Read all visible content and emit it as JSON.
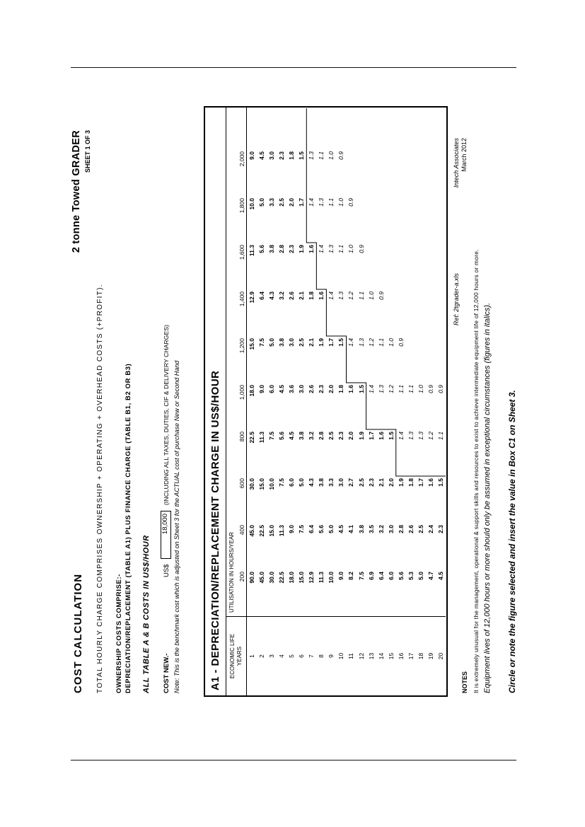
{
  "document": {
    "title": "COST CALCULATION",
    "machine": "2 tonne Towed GRADER",
    "sheet_label": "SHEET 1 OF 3",
    "intro": "TOTAL HOURLY CHARGE COMPRISES OWNERSHIP + OPERATING + OVERHEAD COSTS (+PROFIT).",
    "ownership_heading": "OWNERSHIP COSTS COMPRISE:-",
    "ownership_detail": "DEPRECIATION/REPLACEMENT (TABLE A1) PLUS FINANCE CHARGE (TABLE B1, B2 OR B3)",
    "costs_note": "ALL TABLE A & B COSTS IN US$/HOUR",
    "cost_new": {
      "label": "COST NEW.-",
      "currency": "US$",
      "value": "18,000",
      "suffix": "(INCLUDING ALL TAXES, DUTIES, CIF & DELIVERY CHARGES)"
    },
    "benchmark_note": "Note: This is the benchmark cost which is adjusted on Sheet 3 for the ACTUAL cost of purchase New or Second Hand",
    "ref": "Ref: 2tgrader-a.xls",
    "company": "Intech Associates",
    "date": "March 2012",
    "notes_heading": "NOTES",
    "note1": "It is extremely unusual for the management, operational & support skills and resources to exist to achieve intermediate equipment life of 12,000 hours or more.",
    "note2": "Equipment lives of 12,000 hours or more should only be assumed in exceptional circumstances (figures in italics).",
    "note3": "Circle or note the figure selected and insert the value in Box C1 on Sheet 3."
  },
  "table": {
    "title": "A1 - DEPRECIATION/REPLACEMENT CHARGE IN US$/HOUR",
    "row_header_line1": "ECONOMIC LIFE",
    "row_header_line2": "YEARS",
    "col_group_header": "UTILISATION IN HOURS/YEAR",
    "col_headers": [
      "200",
      "400",
      "600",
      "800",
      "1,000",
      "1,200",
      "1,400",
      "1,600",
      "1,800",
      "2,000"
    ],
    "italic_threshold_hours": 12000,
    "rows": [
      {
        "year": "1",
        "values": [
          "90.0",
          "45.0",
          "30.0",
          "22.5",
          "18.0",
          "15.0",
          "12.9",
          "11.3",
          "10.0",
          "9.0"
        ]
      },
      {
        "year": "2",
        "values": [
          "45.0",
          "22.5",
          "15.0",
          "11.3",
          "9.0",
          "7.5",
          "6.4",
          "5.6",
          "5.0",
          "4.5"
        ]
      },
      {
        "year": "3",
        "values": [
          "30.0",
          "15.0",
          "10.0",
          "7.5",
          "6.0",
          "5.0",
          "4.3",
          "3.8",
          "3.3",
          "3.0"
        ]
      },
      {
        "year": "4",
        "values": [
          "22.5",
          "11.3",
          "7.5",
          "5.6",
          "4.5",
          "3.8",
          "3.2",
          "2.8",
          "2.5",
          "2.3"
        ]
      },
      {
        "year": "5",
        "values": [
          "18.0",
          "9.0",
          "6.0",
          "4.5",
          "3.6",
          "3.0",
          "2.6",
          "2.3",
          "2.0",
          "1.8"
        ]
      },
      {
        "year": "6",
        "values": [
          "15.0",
          "7.5",
          "5.0",
          "3.8",
          "3.0",
          "2.5",
          "2.1",
          "1.9",
          "1.7",
          "1.5"
        ]
      },
      {
        "year": "7",
        "values": [
          "12.9",
          "6.4",
          "4.3",
          "3.2",
          "2.6",
          "2.1",
          "1.8",
          "1.6",
          "1.4",
          "1.3"
        ]
      },
      {
        "year": "8",
        "values": [
          "11.3",
          "5.6",
          "3.8",
          "2.8",
          "2.3",
          "1.9",
          "1.6",
          "1.4",
          "1.3",
          "1.1"
        ]
      },
      {
        "year": "9",
        "values": [
          "10.0",
          "5.0",
          "3.3",
          "2.5",
          "2.0",
          "1.7",
          "1.4",
          "1.3",
          "1.1",
          "1.0"
        ]
      },
      {
        "year": "10",
        "values": [
          "9.0",
          "4.5",
          "3.0",
          "2.3",
          "1.8",
          "1.5",
          "1.3",
          "1.1",
          "1.0",
          "0.9"
        ]
      },
      {
        "year": "11",
        "values": [
          "8.2",
          "4.1",
          "2.7",
          "2.0",
          "1.6",
          "1.4",
          "1.2",
          "1.0",
          "0.9",
          ""
        ]
      },
      {
        "year": "12",
        "values": [
          "7.5",
          "3.8",
          "2.5",
          "1.9",
          "1.5",
          "1.3",
          "1.1",
          "0.9",
          "",
          ""
        ]
      },
      {
        "year": "13",
        "values": [
          "6.9",
          "3.5",
          "2.3",
          "1.7",
          "1.4",
          "1.2",
          "1.0",
          "",
          "",
          ""
        ]
      },
      {
        "year": "14",
        "values": [
          "6.4",
          "3.2",
          "2.1",
          "1.6",
          "1.3",
          "1.1",
          "0.9",
          "",
          "",
          ""
        ]
      },
      {
        "year": "15",
        "values": [
          "6.0",
          "3.0",
          "2.0",
          "1.5",
          "1.2",
          "1.0",
          "",
          "",
          "",
          ""
        ]
      },
      {
        "year": "16",
        "values": [
          "5.6",
          "2.8",
          "1.9",
          "1.4",
          "1.1",
          "0.9",
          "",
          "",
          "",
          ""
        ]
      },
      {
        "year": "17",
        "values": [
          "5.3",
          "2.6",
          "1.8",
          "1.3",
          "1.1",
          "",
          "",
          "",
          "",
          ""
        ]
      },
      {
        "year": "18",
        "values": [
          "5.0",
          "2.5",
          "1.7",
          "1.3",
          "1.0",
          "",
          "",
          "",
          "",
          ""
        ]
      },
      {
        "year": "19",
        "values": [
          "4.7",
          "2.4",
          "1.6",
          "1.2",
          "0.9",
          "",
          "",
          "",
          "",
          ""
        ]
      },
      {
        "year": "20",
        "values": [
          "4.5",
          "2.3",
          "1.5",
          "1.1",
          "0.9",
          "",
          "",
          "",
          "",
          ""
        ]
      }
    ]
  }
}
